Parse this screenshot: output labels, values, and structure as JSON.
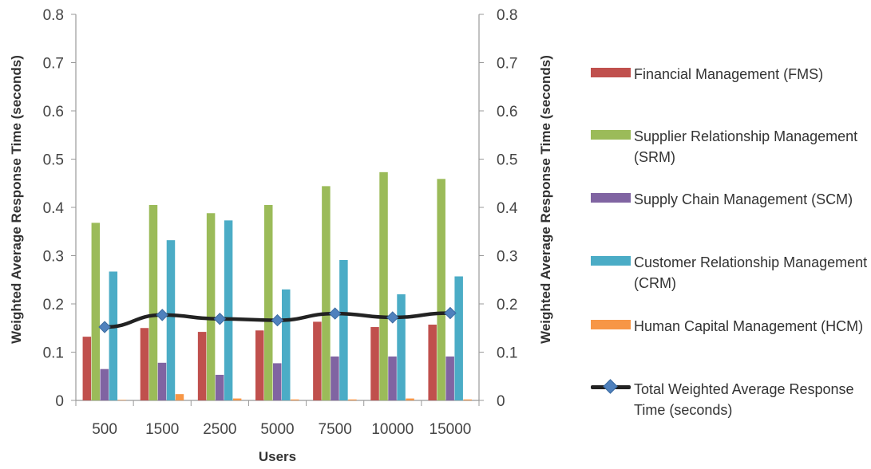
{
  "chart_data": {
    "type": "bar",
    "xlabel": "Users",
    "ylabel": "Weighted Average Response Time (seconds)",
    "y2label": "Weighted Average Response Time (seconds)",
    "ylim": [
      0,
      0.8
    ],
    "yticks": [
      "0",
      "0.1",
      "0.2",
      "0.3",
      "0.4",
      "0.5",
      "0.6",
      "0.7",
      "0.8"
    ],
    "categories": [
      "500",
      "1500",
      "2500",
      "5000",
      "7500",
      "10000",
      "15000"
    ],
    "grid": false,
    "legend_position": "right",
    "series": [
      {
        "name": "Financial Management (FMS)",
        "type": "bar",
        "color": "#c0504d",
        "values": [
          0.132,
          0.15,
          0.142,
          0.145,
          0.163,
          0.152,
          0.157
        ]
      },
      {
        "name": "Supplier Relationship Management (SRM)",
        "type": "bar",
        "color": "#9bbb59",
        "values": [
          0.368,
          0.405,
          0.388,
          0.405,
          0.444,
          0.473,
          0.459
        ]
      },
      {
        "name": "Supply Chain Management (SCM)",
        "type": "bar",
        "color": "#8064a2",
        "values": [
          0.065,
          0.078,
          0.053,
          0.077,
          0.091,
          0.091,
          0.091
        ]
      },
      {
        "name": "Customer Relationship Management (CRM)",
        "type": "bar",
        "color": "#4bacc6",
        "values": [
          0.267,
          0.332,
          0.373,
          0.23,
          0.291,
          0.22,
          0.257
        ]
      },
      {
        "name": "Human Capital Management (HCM)",
        "type": "bar",
        "color": "#f79646",
        "values": [
          0.001,
          0.013,
          0.004,
          0.002,
          0.002,
          0.004,
          0.002
        ]
      },
      {
        "name": "Total Weighted Average Response Time (seconds)",
        "type": "line",
        "color": "#222222",
        "marker_color": "#4f81bd",
        "values": [
          0.152,
          0.177,
          0.169,
          0.166,
          0.18,
          0.172,
          0.181
        ]
      }
    ]
  }
}
